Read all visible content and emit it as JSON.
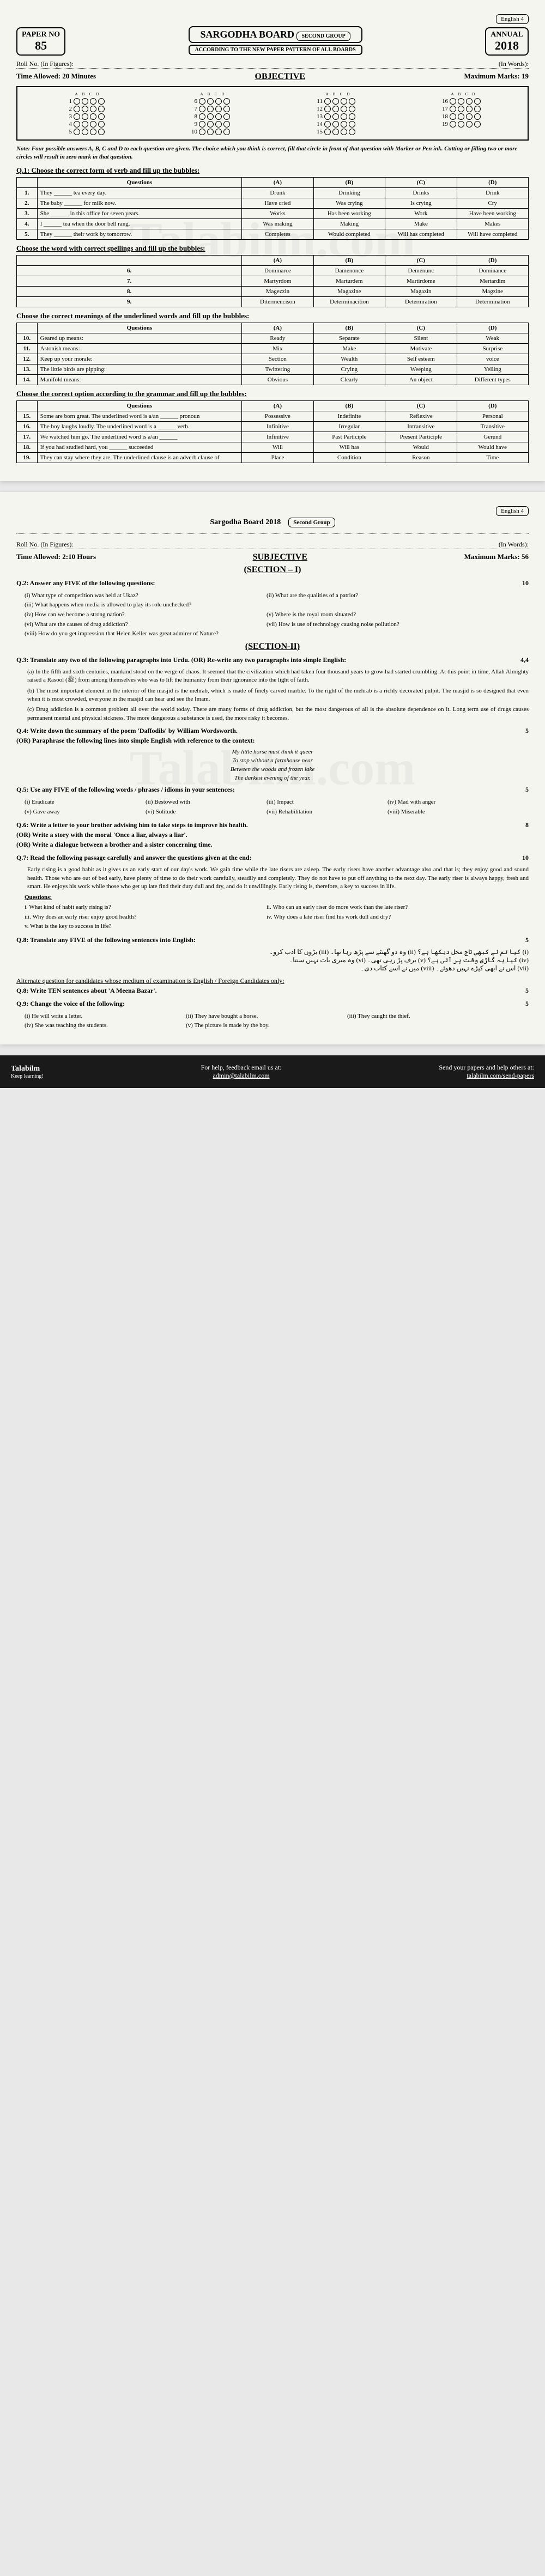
{
  "watermark": "Talabilm.com",
  "header": {
    "paper_no_label": "PAPER NO",
    "paper_no": "85",
    "board": "SARGODHA BOARD",
    "group": "SECOND GROUP",
    "annual_label": "ANNUAL",
    "year": "2018",
    "pattern": "ACCORDING TO THE NEW PAPER PATTERN OF ALL BOARDS",
    "subject": "English",
    "subject_num": "4"
  },
  "objective": {
    "roll_fig": "Roll No. (In Figures):",
    "roll_words": "(In Words):",
    "time": "Time Allowed: 20 Minutes",
    "marks": "Maximum Marks: 19",
    "title": "OBJECTIVE",
    "note": "Note: Four possible answers A, B, C and D to each question are given. The choice which you think is correct, fill that circle in front of that question with Marker or Pen ink. Cutting or filling two or more circles will result in zero mark in that question.",
    "bubble_labels": [
      "A",
      "B",
      "C",
      "D"
    ]
  },
  "q1": {
    "title": "Q.1: Choose the correct form of verb and fill up the bubbles:",
    "headers": [
      "",
      "Questions",
      "(A)",
      "(B)",
      "(C)",
      "(D)"
    ],
    "rows": [
      [
        "1.",
        "They ______ tea every day.",
        "Drunk",
        "Drinking",
        "Drinks",
        "Drink"
      ],
      [
        "2.",
        "The baby ______ for milk now.",
        "Have cried",
        "Was crying",
        "Is crying",
        "Cry"
      ],
      [
        "3.",
        "She ______ in this office for seven years.",
        "Works",
        "Has been working",
        "Work",
        "Have been working"
      ],
      [
        "4.",
        "I ______ tea when the door bell rang.",
        "Was making",
        "Making",
        "Make",
        "Makes"
      ],
      [
        "5.",
        "They ______ their work by tomorrow.",
        "Completes",
        "Would completed",
        "Will has completed",
        "Will have completed"
      ]
    ]
  },
  "q2_spell": {
    "title": "Choose the word with correct spellings and fill up the bubbles:",
    "headers": [
      "",
      "(A)",
      "(B)",
      "(C)",
      "(D)"
    ],
    "rows": [
      [
        "6.",
        "Dominarce",
        "Damenonce",
        "Demenunc",
        "Dominance"
      ],
      [
        "7.",
        "Martyrdom",
        "Marturdem",
        "Martirdome",
        "Mertardim"
      ],
      [
        "8.",
        "Magezzin",
        "Magazine",
        "Magazin",
        "Magzine"
      ],
      [
        "9.",
        "Ditermencison",
        "Determinacition",
        "Determration",
        "Determination"
      ]
    ]
  },
  "q3_mean": {
    "title": "Choose the correct meanings of the underlined words and fill up the bubbles:",
    "headers": [
      "",
      "Questions",
      "(A)",
      "(B)",
      "(C)",
      "(D)"
    ],
    "rows": [
      [
        "10.",
        "Geared up means:",
        "Ready",
        "Separate",
        "Silent",
        "Weak"
      ],
      [
        "11.",
        "Astonish means:",
        "Mix",
        "Make",
        "Motivate",
        "Surprise"
      ],
      [
        "12.",
        "Keep up your morale:",
        "Section",
        "Wealth",
        "Self esteem",
        "voice"
      ],
      [
        "13.",
        "The little birds are pipping:",
        "Twittering",
        "Crying",
        "Weeping",
        "Yelling"
      ],
      [
        "14.",
        "Manifold means:",
        "Obvious",
        "Clearly",
        "An object",
        "Different types"
      ]
    ]
  },
  "q4_gram": {
    "title": "Choose the correct option according to the grammar and fill up the bubbles:",
    "headers": [
      "",
      "Questions",
      "(A)",
      "(B)",
      "(C)",
      "(D)"
    ],
    "rows": [
      [
        "15.",
        "Some are born great. The underlined word is a/an ______ pronoun",
        "Possessive",
        "Indefinite",
        "Reflexive",
        "Personal"
      ],
      [
        "16.",
        "The boy laughs loudly. The underlined word is a ______ verb.",
        "Infinitive",
        "Irregular",
        "Intransitive",
        "Transitive"
      ],
      [
        "17.",
        "We watched him go. The underlined word is a/an ______",
        "Infinitive",
        "Past Participle",
        "Present Participle",
        "Gerund"
      ],
      [
        "18.",
        "If you had studied hard, you ______ succeeded",
        "Will",
        "Will has",
        "Would",
        "Would have"
      ],
      [
        "19.",
        "They can stay where they are. The underlined clause is an adverb clause of",
        "Place",
        "Condition",
        "Reason",
        "Time"
      ]
    ]
  },
  "subjective": {
    "board_line": "Sargodha Board 2018",
    "group": "Second Group",
    "roll_fig": "Roll No. (In Figures):",
    "roll_words": "(In Words):",
    "time": "Time Allowed: 2:10 Hours",
    "marks": "Maximum Marks: 56",
    "title": "SUBJECTIVE",
    "section1": "(SECTION – I)",
    "section2": "(SECTION-II)",
    "q2": {
      "text": "Q.2: Answer any FIVE of the following questions:",
      "marks": "10",
      "parts": [
        "(i) What type of competition was held at Ukaz?",
        "(ii) What are the qualities of a patriot?",
        "(iii) What happens when media is allowed to play its role unchecked?",
        "",
        "(iv) How can we become a strong nation?",
        "(v) Where is the royal room situated?",
        "(vi) What are the causes of drug addiction?",
        "(vii) How is use of technology causing noise pollution?",
        "(viii) How do you get impression that Helen Keller was great admirer of Nature?",
        ""
      ]
    },
    "q3": {
      "text": "Q.3: Translate any two of the following paragraphs into Urdu. (OR) Re-write any two paragraphs into simple English:",
      "marks": "4,4",
      "paras": [
        "(a) In the fifth and sixth centuries, mankind stood on the verge of chaos. It seemed that the civilization which had taken four thousand years to grow had started crumbling. At this point in time, Allah Almighty raised a Rasool (ﷺ) from among themselves who was to lift the humanity from their ignorance into the light of faith.",
        "(b) The most important element in the interior of the masjid is the mehrab, which is made of finely carved marble. To the right of the mehrab is a richly decorated pulpit. The masjid is so designed that even when it is most crowded, everyone in the masjid can hear and see the Imam.",
        "(c) Drug addiction is a common problem all over the world today. There are many forms of drug addiction, but the most dangerous of all is the absolute dependence on it. Long term use of drugs causes permanent mental and physical sickness. The more dangerous a substance is used, the more risky it becomes."
      ]
    },
    "q4": {
      "text": "Q.4: Write down the summary of the poem 'Daffodils' by William Wordsworth.",
      "marks": "5",
      "or": "(OR) Paraphrase the following lines into simple English with reference to the context:",
      "lines": [
        "My little horse must think it queer",
        "To stop without a farmhouse near",
        "Between the woods and frozen lake",
        "The darkest evening of the year."
      ]
    },
    "q5": {
      "text": "Q.5: Use any FIVE of the following words / phrases / idioms in your sentences:",
      "marks": "5",
      "parts": [
        "(i) Eradicate",
        "(ii) Bestowed with",
        "(iii) Impact",
        "(iv) Mad with anger",
        "(v) Gave away",
        "(vi) Solitude",
        "(vii) Rehabilitation",
        "(viii) Miserable"
      ]
    },
    "q6": {
      "text": "Q.6: Write a letter to your brother advising him to take steps to improve his health.",
      "marks": "8",
      "or1": "(OR) Write a story with the moral 'Once a liar, always a liar'.",
      "or2": "(OR) Write a dialogue between a brother and a sister concerning time."
    },
    "q7": {
      "text": "Q.7: Read the following passage carefully and answer the questions given at the end:",
      "marks": "10",
      "passage": "Early rising is a good habit as it gives us an early start of our day's work. We gain time while the late risers are asleep. The early risers have another advantage also and that is; they enjoy good and sound health. Those who are out of bed early, have plenty of time to do their work carefully, steadily and completely. They do not have to put off anything to the next day. The early riser is always happy, fresh and smart. He enjoys his work while those who get up late find their duty dull and dry, and do it unwillingly. Early rising is, therefore, a key to success in life.",
      "questions": [
        "i. What kind of habit early rising is?",
        "ii. Who can an early riser do more work than the late riser?",
        "iii. Why does an early riser enjoy good health?",
        "iv. Why does a late riser find his work dull and dry?",
        "v. What is the key to success in life?"
      ]
    },
    "q8": {
      "text": "Q.8: Translate any FIVE of the following sentences into English:",
      "marks": "5",
      "alt": "Alternate question for candidates whose medium of examination is English / Foreign Candidates only:",
      "alt_q": "Q.8: Write TEN sentences about 'A Meena Bazar'.",
      "alt_marks": "5"
    },
    "q9": {
      "text": "Q.9: Change the voice of the following:",
      "marks": "5",
      "parts": [
        "(i) He will write a letter.",
        "(ii) They have bought a horse.",
        "(iii) They caught the thief.",
        "(iv) She was teaching the students.",
        "(v) The picture is made by the boy."
      ]
    }
  },
  "footer": {
    "logo": "Talabilm",
    "tagline": "Keep learning!",
    "help": "For help, feedback email us at:",
    "email": "admin@talabilm.com",
    "send": "Send your papers and help others at:",
    "url": "talabilm.com/send-papers"
  }
}
